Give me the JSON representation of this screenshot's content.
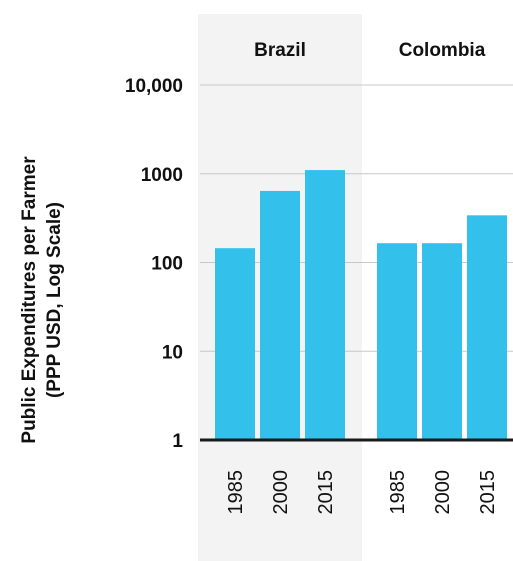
{
  "chart_data": {
    "type": "bar",
    "ylabel_lines": [
      "Public Expenditures per Farmer",
      "(PPP USD, Log Scale)"
    ],
    "y_scale": "log",
    "ylim": [
      1,
      10000
    ],
    "y_ticks": [
      {
        "value": 1,
        "label": "1"
      },
      {
        "value": 10,
        "label": "10"
      },
      {
        "value": 100,
        "label": "100"
      },
      {
        "value": 1000,
        "label": "1000"
      },
      {
        "value": 10000,
        "label": "10,000"
      }
    ],
    "grid": true,
    "bar_color": "#33c1eb",
    "group_band_color": "#f3f3f3",
    "groups": [
      {
        "name": "Brazil",
        "bars": [
          {
            "category": "1985",
            "value": 145
          },
          {
            "category": "2000",
            "value": 640
          },
          {
            "category": "2015",
            "value": 1100
          }
        ]
      },
      {
        "name": "Colombia",
        "bars": [
          {
            "category": "1985",
            "value": 165
          },
          {
            "category": "2000",
            "value": 165
          },
          {
            "category": "2015",
            "value": 340
          }
        ]
      }
    ]
  }
}
